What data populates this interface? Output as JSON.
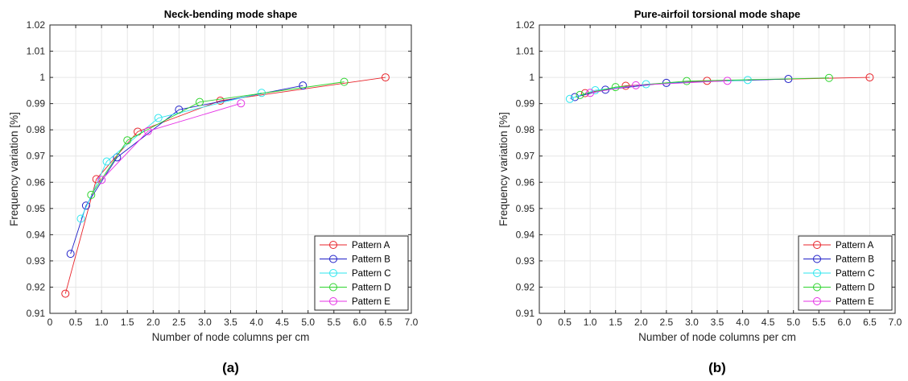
{
  "chart_data": [
    {
      "type": "line",
      "panel_label": "(a)",
      "title": "Neck-bending mode shape",
      "xlabel": "Number of node columns per  cm",
      "ylabel": "Frequency variation [%]",
      "xlim": [
        0,
        7
      ],
      "ylim": [
        0.91,
        1.02
      ],
      "xticks": [
        "0",
        "0.5",
        "1.0",
        "1.5",
        "2.0",
        "2.5",
        "3.0",
        "3.5",
        "4.0",
        "4.5",
        "5.0",
        "5.5",
        "6.0",
        "6.5",
        "7.0"
      ],
      "yticks": [
        "0.91",
        "0.92",
        "0.93",
        "0.94",
        "0.95",
        "0.96",
        "0.97",
        "0.98",
        "0.99",
        "1",
        "1.01",
        "1.02"
      ],
      "grid": true,
      "legend_position": "bottom-right",
      "series": [
        {
          "name": "Pattern A",
          "color": "#e8242b",
          "x": [
            0.3,
            0.9,
            1.7,
            3.3,
            6.5
          ],
          "y": [
            0.9175,
            0.9612,
            0.9793,
            0.9911,
            1.0
          ]
        },
        {
          "name": "Pattern B",
          "color": "#1f1fc8",
          "x": [
            0.4,
            0.7,
            1.3,
            2.5,
            4.9
          ],
          "y": [
            0.9327,
            0.9511,
            0.9695,
            0.9877,
            0.9969
          ]
        },
        {
          "name": "Pattern C",
          "color": "#2ee6ee",
          "x": [
            0.6,
            1.1,
            2.1,
            4.1
          ],
          "y": [
            0.9461,
            0.9679,
            0.9845,
            0.9941
          ]
        },
        {
          "name": "Pattern D",
          "color": "#2ed42e",
          "x": [
            0.8,
            1.5,
            2.9,
            5.7
          ],
          "y": [
            0.9552,
            0.976,
            0.9906,
            0.9983
          ]
        },
        {
          "name": "Pattern E",
          "color": "#e633e6",
          "x": [
            1.0,
            1.9,
            3.7
          ],
          "y": [
            0.9609,
            0.9795,
            0.9901
          ]
        }
      ]
    },
    {
      "type": "line",
      "panel_label": "(b)",
      "title": "Pure-airfoil torsional mode shape",
      "xlabel": "Number of node columns per  cm",
      "ylabel": "Frequency variation [%]",
      "xlim": [
        0,
        7
      ],
      "ylim": [
        0.91,
        1.02
      ],
      "xticks": [
        "0",
        "0.5",
        "1.0",
        "1.5",
        "2.0",
        "2.5",
        "3.0",
        "3.5",
        "4.0",
        "4.5",
        "5.0",
        "5.5",
        "6.0",
        "6.5",
        "7.0"
      ],
      "yticks": [
        "0.91",
        "0.92",
        "0.93",
        "0.94",
        "0.95",
        "0.96",
        "0.97",
        "0.98",
        "0.99",
        "1",
        "1.01",
        "1.02"
      ],
      "grid": true,
      "legend_position": "bottom-right",
      "series": [
        {
          "name": "Pattern A",
          "color": "#e8242b",
          "x": [
            0.9,
            1.7,
            3.3,
            6.5
          ],
          "y": [
            0.994,
            0.9968,
            0.9987,
            1.0
          ]
        },
        {
          "name": "Pattern B",
          "color": "#1f1fc8",
          "x": [
            0.7,
            1.3,
            2.5,
            4.9
          ],
          "y": [
            0.9925,
            0.9953,
            0.9979,
            0.9994
          ]
        },
        {
          "name": "Pattern C",
          "color": "#2ee6ee",
          "x": [
            0.6,
            1.1,
            2.1,
            4.1
          ],
          "y": [
            0.9918,
            0.9951,
            0.9974,
            0.999
          ]
        },
        {
          "name": "Pattern D",
          "color": "#2ed42e",
          "x": [
            0.8,
            1.5,
            2.9,
            5.7
          ],
          "y": [
            0.9933,
            0.9963,
            0.9986,
            0.9998
          ]
        },
        {
          "name": "Pattern E",
          "color": "#e633e6",
          "x": [
            1.0,
            1.9,
            3.7
          ],
          "y": [
            0.9941,
            0.997,
            0.9987
          ]
        }
      ]
    }
  ]
}
